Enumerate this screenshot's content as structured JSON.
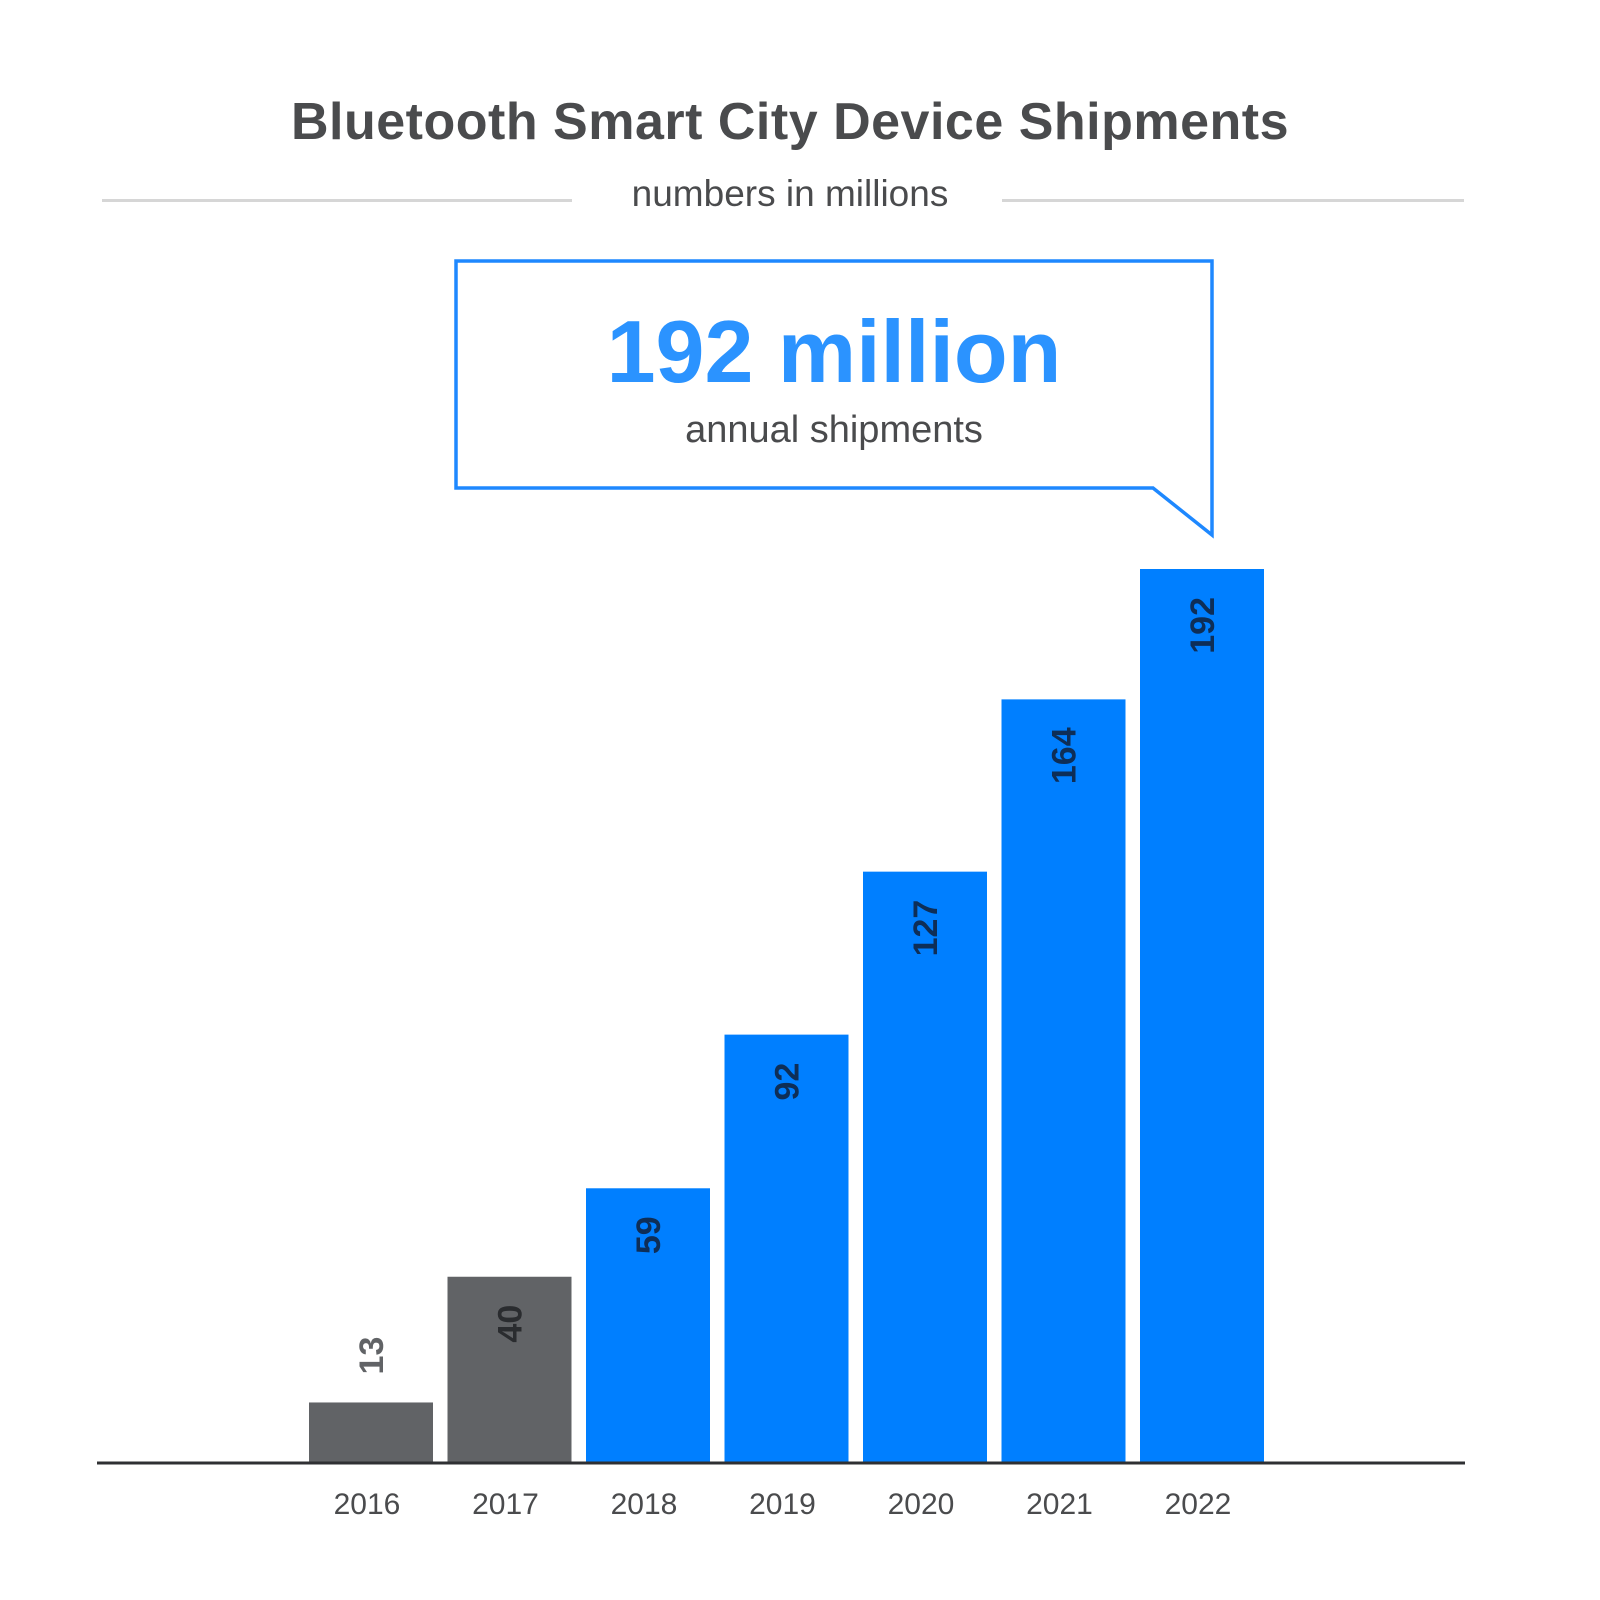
{
  "chart_data": {
    "type": "bar",
    "title": "Bluetooth Smart City Device Shipments",
    "subtitle": "numbers in millions",
    "categories": [
      "2016",
      "2017",
      "2018",
      "2019",
      "2020",
      "2021",
      "2022"
    ],
    "values": [
      13,
      40,
      59,
      92,
      127,
      164,
      192
    ],
    "bar_colors": [
      "#616366",
      "#616366",
      "#007fff",
      "#007fff",
      "#007fff",
      "#007fff",
      "#007fff"
    ],
    "label_colors": [
      "#616366",
      "#2a2c2f",
      "#0e2e57",
      "#0e2e57",
      "#0e2e57",
      "#0e2e57",
      "#0e2e57"
    ],
    "ylim": [
      0,
      192
    ],
    "grid": false,
    "annotation": {
      "headline": "192 million",
      "caption": "annual shipments",
      "color": "#1e88ff"
    }
  }
}
